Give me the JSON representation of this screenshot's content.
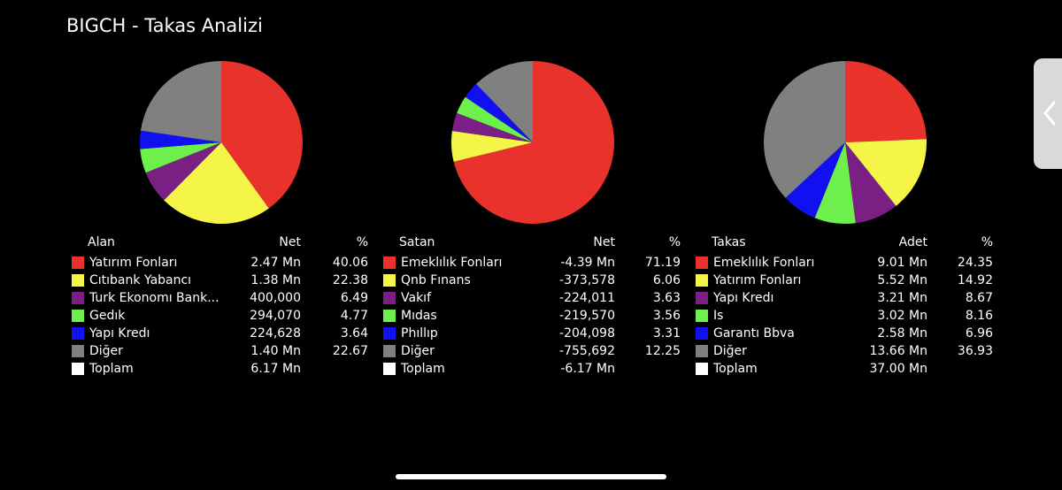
{
  "title": "BIGCH - Takas Analizi",
  "colors": [
    "#e8322b",
    "#f5f547",
    "#7a1f84",
    "#6df04b",
    "#1010f0",
    "#808080",
    "#ffffff"
  ],
  "panels": [
    {
      "key": "alan",
      "header": {
        "name": "Alan",
        "col1": "Net",
        "col2": "%"
      },
      "rows": [
        {
          "name": "Yatırım Fonları",
          "v1": "2.47 Mn",
          "v2": "40.06"
        },
        {
          "name": "Cıtıbank Yabancı",
          "v1": "1.38 Mn",
          "v2": "22.38"
        },
        {
          "name": "Turk Ekonomı Bank...",
          "v1": "400,000",
          "v2": "6.49"
        },
        {
          "name": "Gedık",
          "v1": "294,070",
          "v2": "4.77"
        },
        {
          "name": "Yapı Kredı",
          "v1": "224,628",
          "v2": "3.64"
        },
        {
          "name": "Diğer",
          "v1": "1.40 Mn",
          "v2": "22.67"
        },
        {
          "name": "Toplam",
          "v1": "6.17 Mn",
          "v2": ""
        }
      ],
      "pie": [
        40.06,
        22.38,
        6.49,
        4.77,
        3.64,
        22.67
      ]
    },
    {
      "key": "satan",
      "header": {
        "name": "Satan",
        "col1": "Net",
        "col2": "%"
      },
      "rows": [
        {
          "name": "Emeklılık Fonları",
          "v1": "-4.39 Mn",
          "v2": "71.19"
        },
        {
          "name": "Qnb Fınans",
          "v1": "-373,578",
          "v2": "6.06"
        },
        {
          "name": "Vakıf",
          "v1": "-224,011",
          "v2": "3.63"
        },
        {
          "name": "Mıdas",
          "v1": "-219,570",
          "v2": "3.56"
        },
        {
          "name": "Phıllıp",
          "v1": "-204,098",
          "v2": "3.31"
        },
        {
          "name": "Diğer",
          "v1": "-755,692",
          "v2": "12.25"
        },
        {
          "name": "Toplam",
          "v1": "-6.17 Mn",
          "v2": ""
        }
      ],
      "pie": [
        71.19,
        6.06,
        3.63,
        3.56,
        3.31,
        12.25
      ]
    },
    {
      "key": "takas",
      "header": {
        "name": "Takas",
        "col1": "Adet",
        "col2": "%"
      },
      "rows": [
        {
          "name": "Emeklılık Fonları",
          "v1": "9.01 Mn",
          "v2": "24.35"
        },
        {
          "name": "Yatırım Fonları",
          "v1": "5.52 Mn",
          "v2": "14.92"
        },
        {
          "name": "Yapı Kredı",
          "v1": "3.21 Mn",
          "v2": "8.67"
        },
        {
          "name": "Is",
          "v1": "3.02 Mn",
          "v2": "8.16"
        },
        {
          "name": "Garantı Bbva",
          "v1": "2.58 Mn",
          "v2": "6.96"
        },
        {
          "name": "Diğer",
          "v1": "13.66 Mn",
          "v2": "36.93"
        },
        {
          "name": "Toplam",
          "v1": "37.00 Mn",
          "v2": ""
        }
      ],
      "pie": [
        24.35,
        14.92,
        8.67,
        8.16,
        6.96,
        36.93
      ]
    }
  ]
}
